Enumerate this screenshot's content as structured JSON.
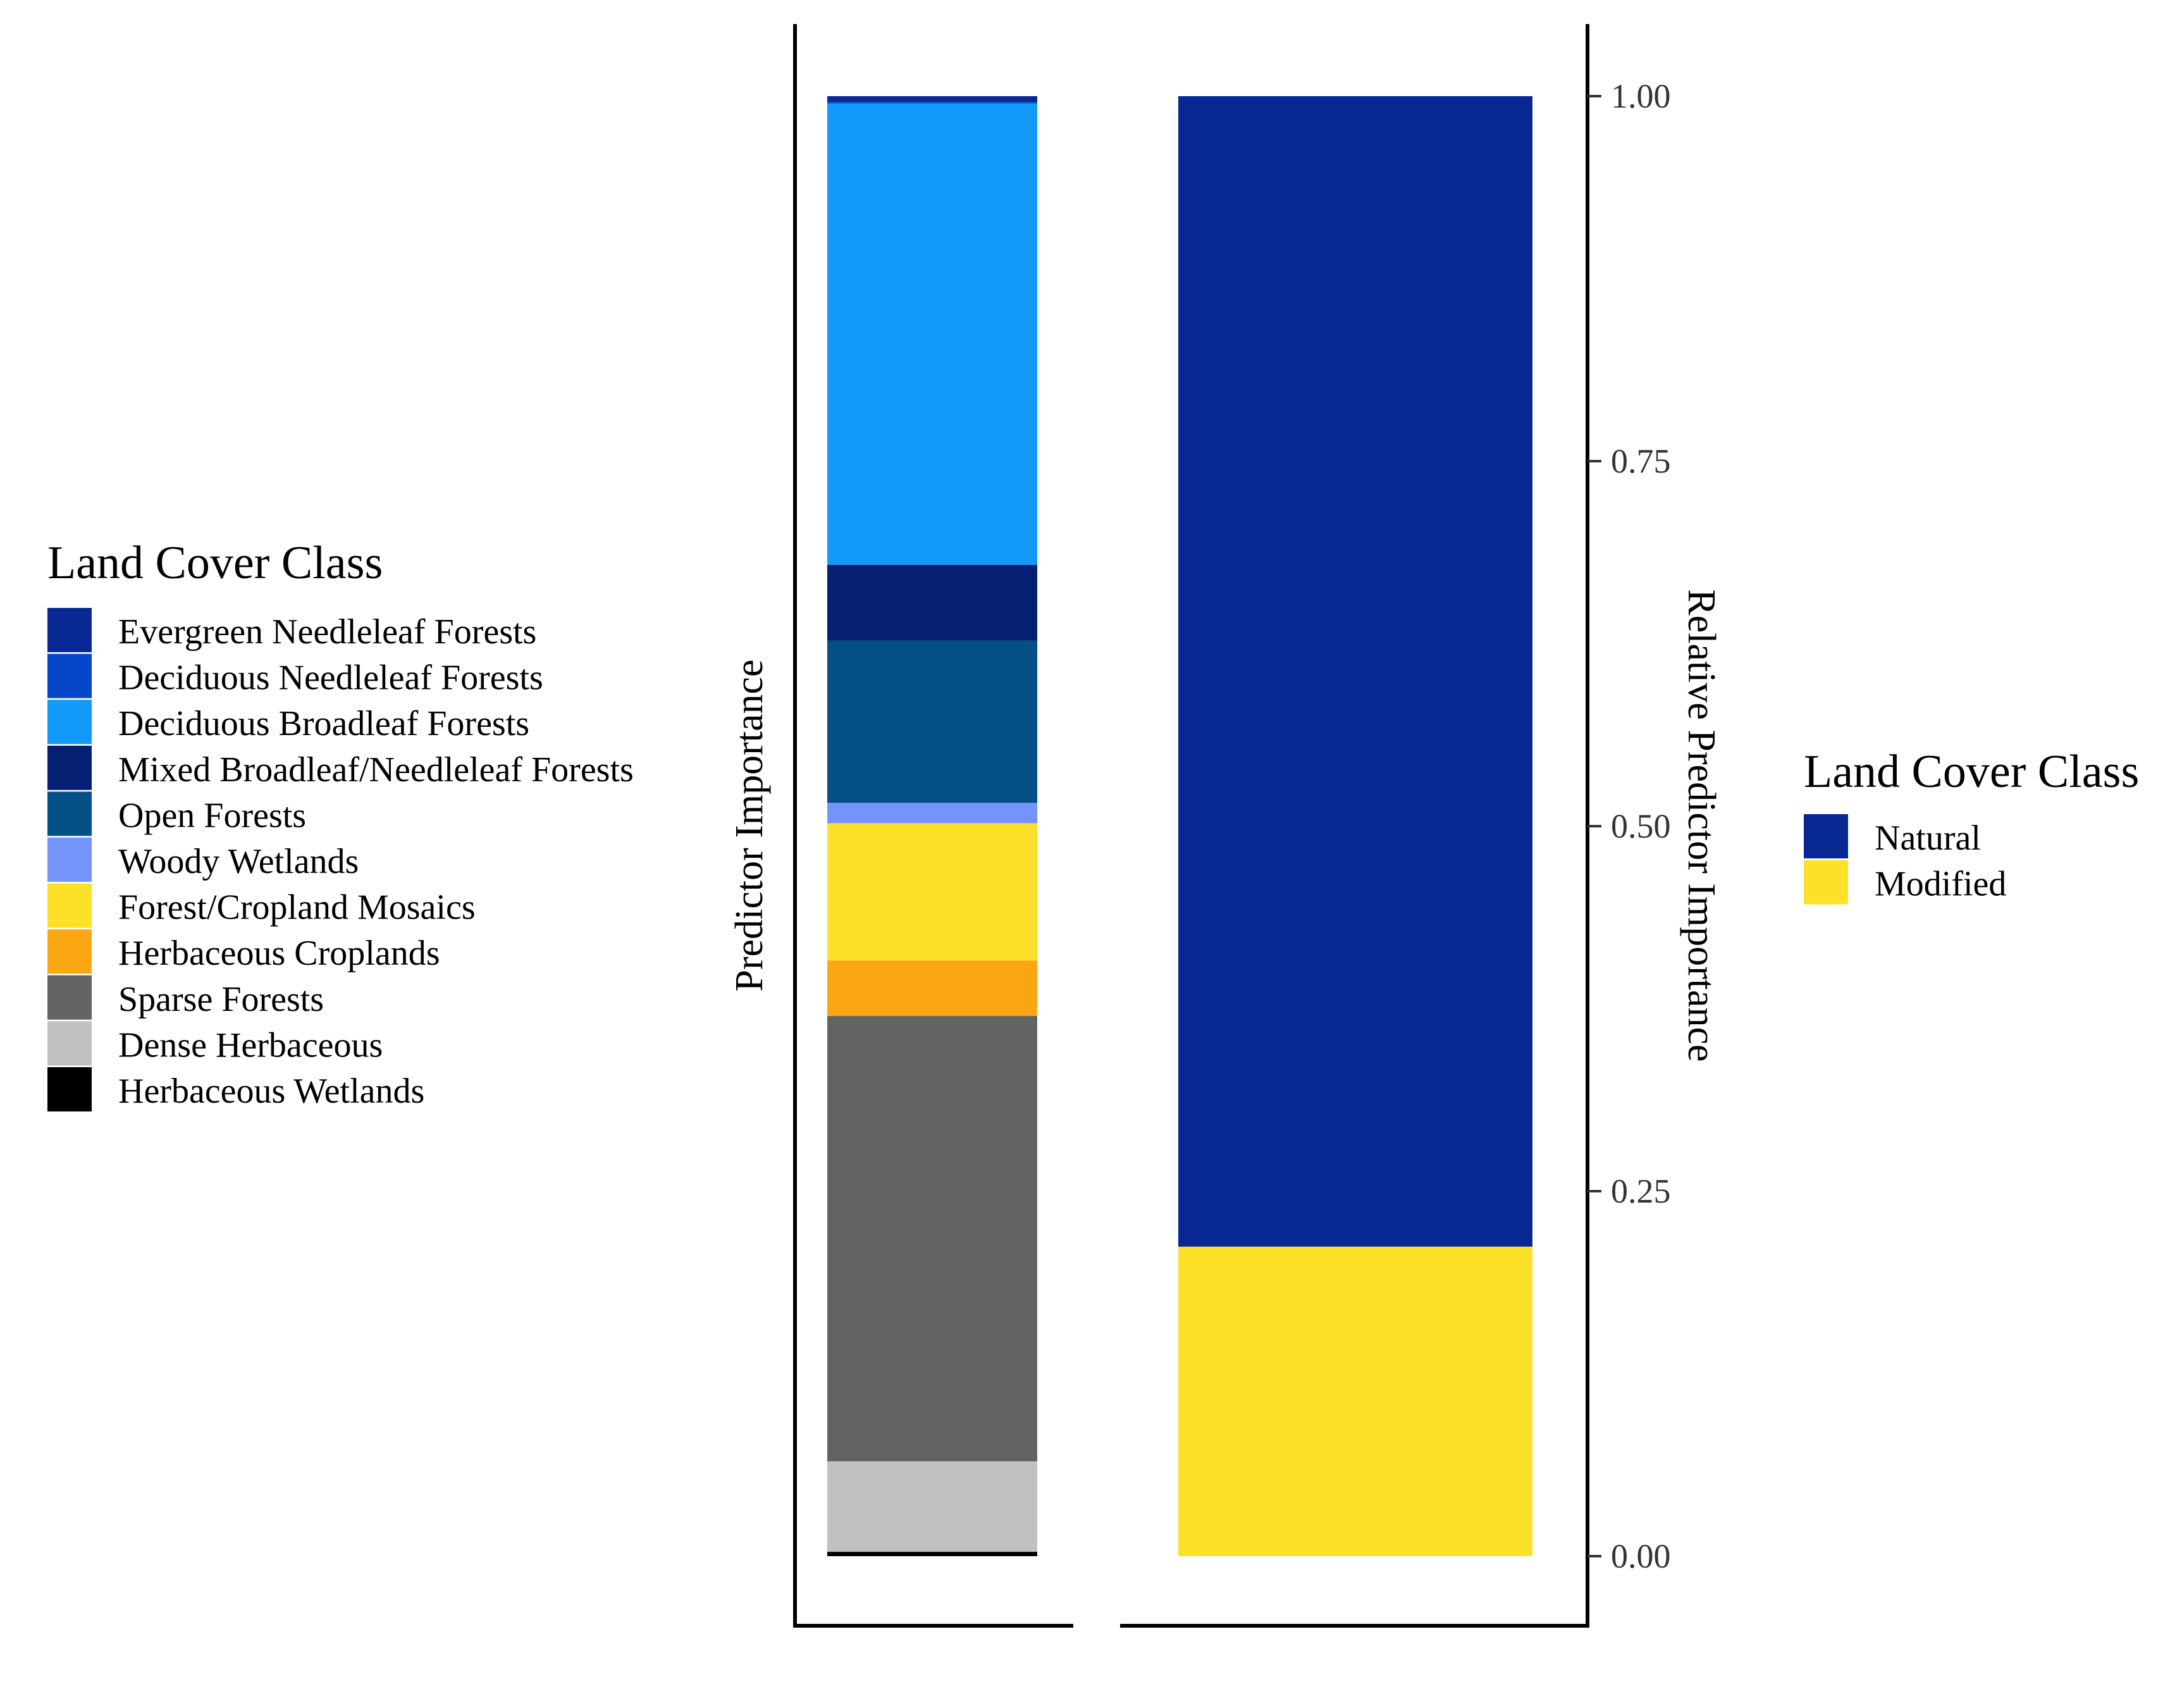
{
  "chart_data": {
    "type": "bar",
    "stacked": true,
    "y_axis": {
      "title": "Relative Predictor Importance",
      "left_title": "Predictor Importance",
      "ticks": [
        "0.00",
        "0.25",
        "0.50",
        "0.75",
        "1.00"
      ],
      "ylim": [
        0,
        1
      ]
    },
    "bars": [
      {
        "id": "land-cover-class-bar",
        "segments": [
          {
            "name": "Herbaceous Wetlands",
            "value": 0.003,
            "color": "#000000"
          },
          {
            "name": "Dense Herbaceous",
            "value": 0.062,
            "color": "#c0c0c0"
          },
          {
            "name": "Sparse Forests",
            "value": 0.305,
            "color": "#636363"
          },
          {
            "name": "Herbaceous Croplands",
            "value": 0.038,
            "color": "#fba714"
          },
          {
            "name": "Forest/Cropland Mosaics",
            "value": 0.094,
            "color": "#fde129"
          },
          {
            "name": "Woody Wetlands",
            "value": 0.014,
            "color": "#7493fb"
          },
          {
            "name": "Open Forests",
            "value": 0.111,
            "color": "#045086"
          },
          {
            "name": "Mixed Broadleaf/Needleleaf Forests",
            "value": 0.052,
            "color": "#051f73"
          },
          {
            "name": "Deciduous Broadleaf Forests",
            "value": 0.316,
            "color": "#1299f9"
          },
          {
            "name": "Deciduous Needleleaf Forests",
            "value": 0.001,
            "color": "#0547c8"
          },
          {
            "name": "Evergreen Needleleaf Forests",
            "value": 0.004,
            "color": "#072893"
          }
        ]
      },
      {
        "id": "natural-modified-bar",
        "segments": [
          {
            "name": "Modified",
            "value": 0.212,
            "color": "#fde129"
          },
          {
            "name": "Natural",
            "value": 0.788,
            "color": "#072893"
          }
        ]
      }
    ],
    "legends": [
      {
        "title": "Land Cover Class",
        "position": "left",
        "items": [
          {
            "label": "Evergreen Needleleaf Forests",
            "color": "#072893"
          },
          {
            "label": "Deciduous Needleleaf Forests",
            "color": "#0547c8"
          },
          {
            "label": "Deciduous Broadleaf Forests",
            "color": "#1299f9"
          },
          {
            "label": "Mixed Broadleaf/Needleleaf Forests",
            "color": "#051f73"
          },
          {
            "label": "Open Forests",
            "color": "#045086"
          },
          {
            "label": "Woody Wetlands",
            "color": "#7493fb"
          },
          {
            "label": "Forest/Cropland Mosaics",
            "color": "#fde129"
          },
          {
            "label": "Herbaceous Croplands",
            "color": "#fba714"
          },
          {
            "label": "Sparse Forests",
            "color": "#636363"
          },
          {
            "label": "Dense Herbaceous",
            "color": "#c0c0c0"
          },
          {
            "label": "Herbaceous Wetlands",
            "color": "#000000"
          }
        ]
      },
      {
        "title": "Land Cover Class",
        "position": "right",
        "items": [
          {
            "label": "Natural",
            "color": "#072893"
          },
          {
            "label": "Modified",
            "color": "#fde129"
          }
        ]
      }
    ]
  }
}
